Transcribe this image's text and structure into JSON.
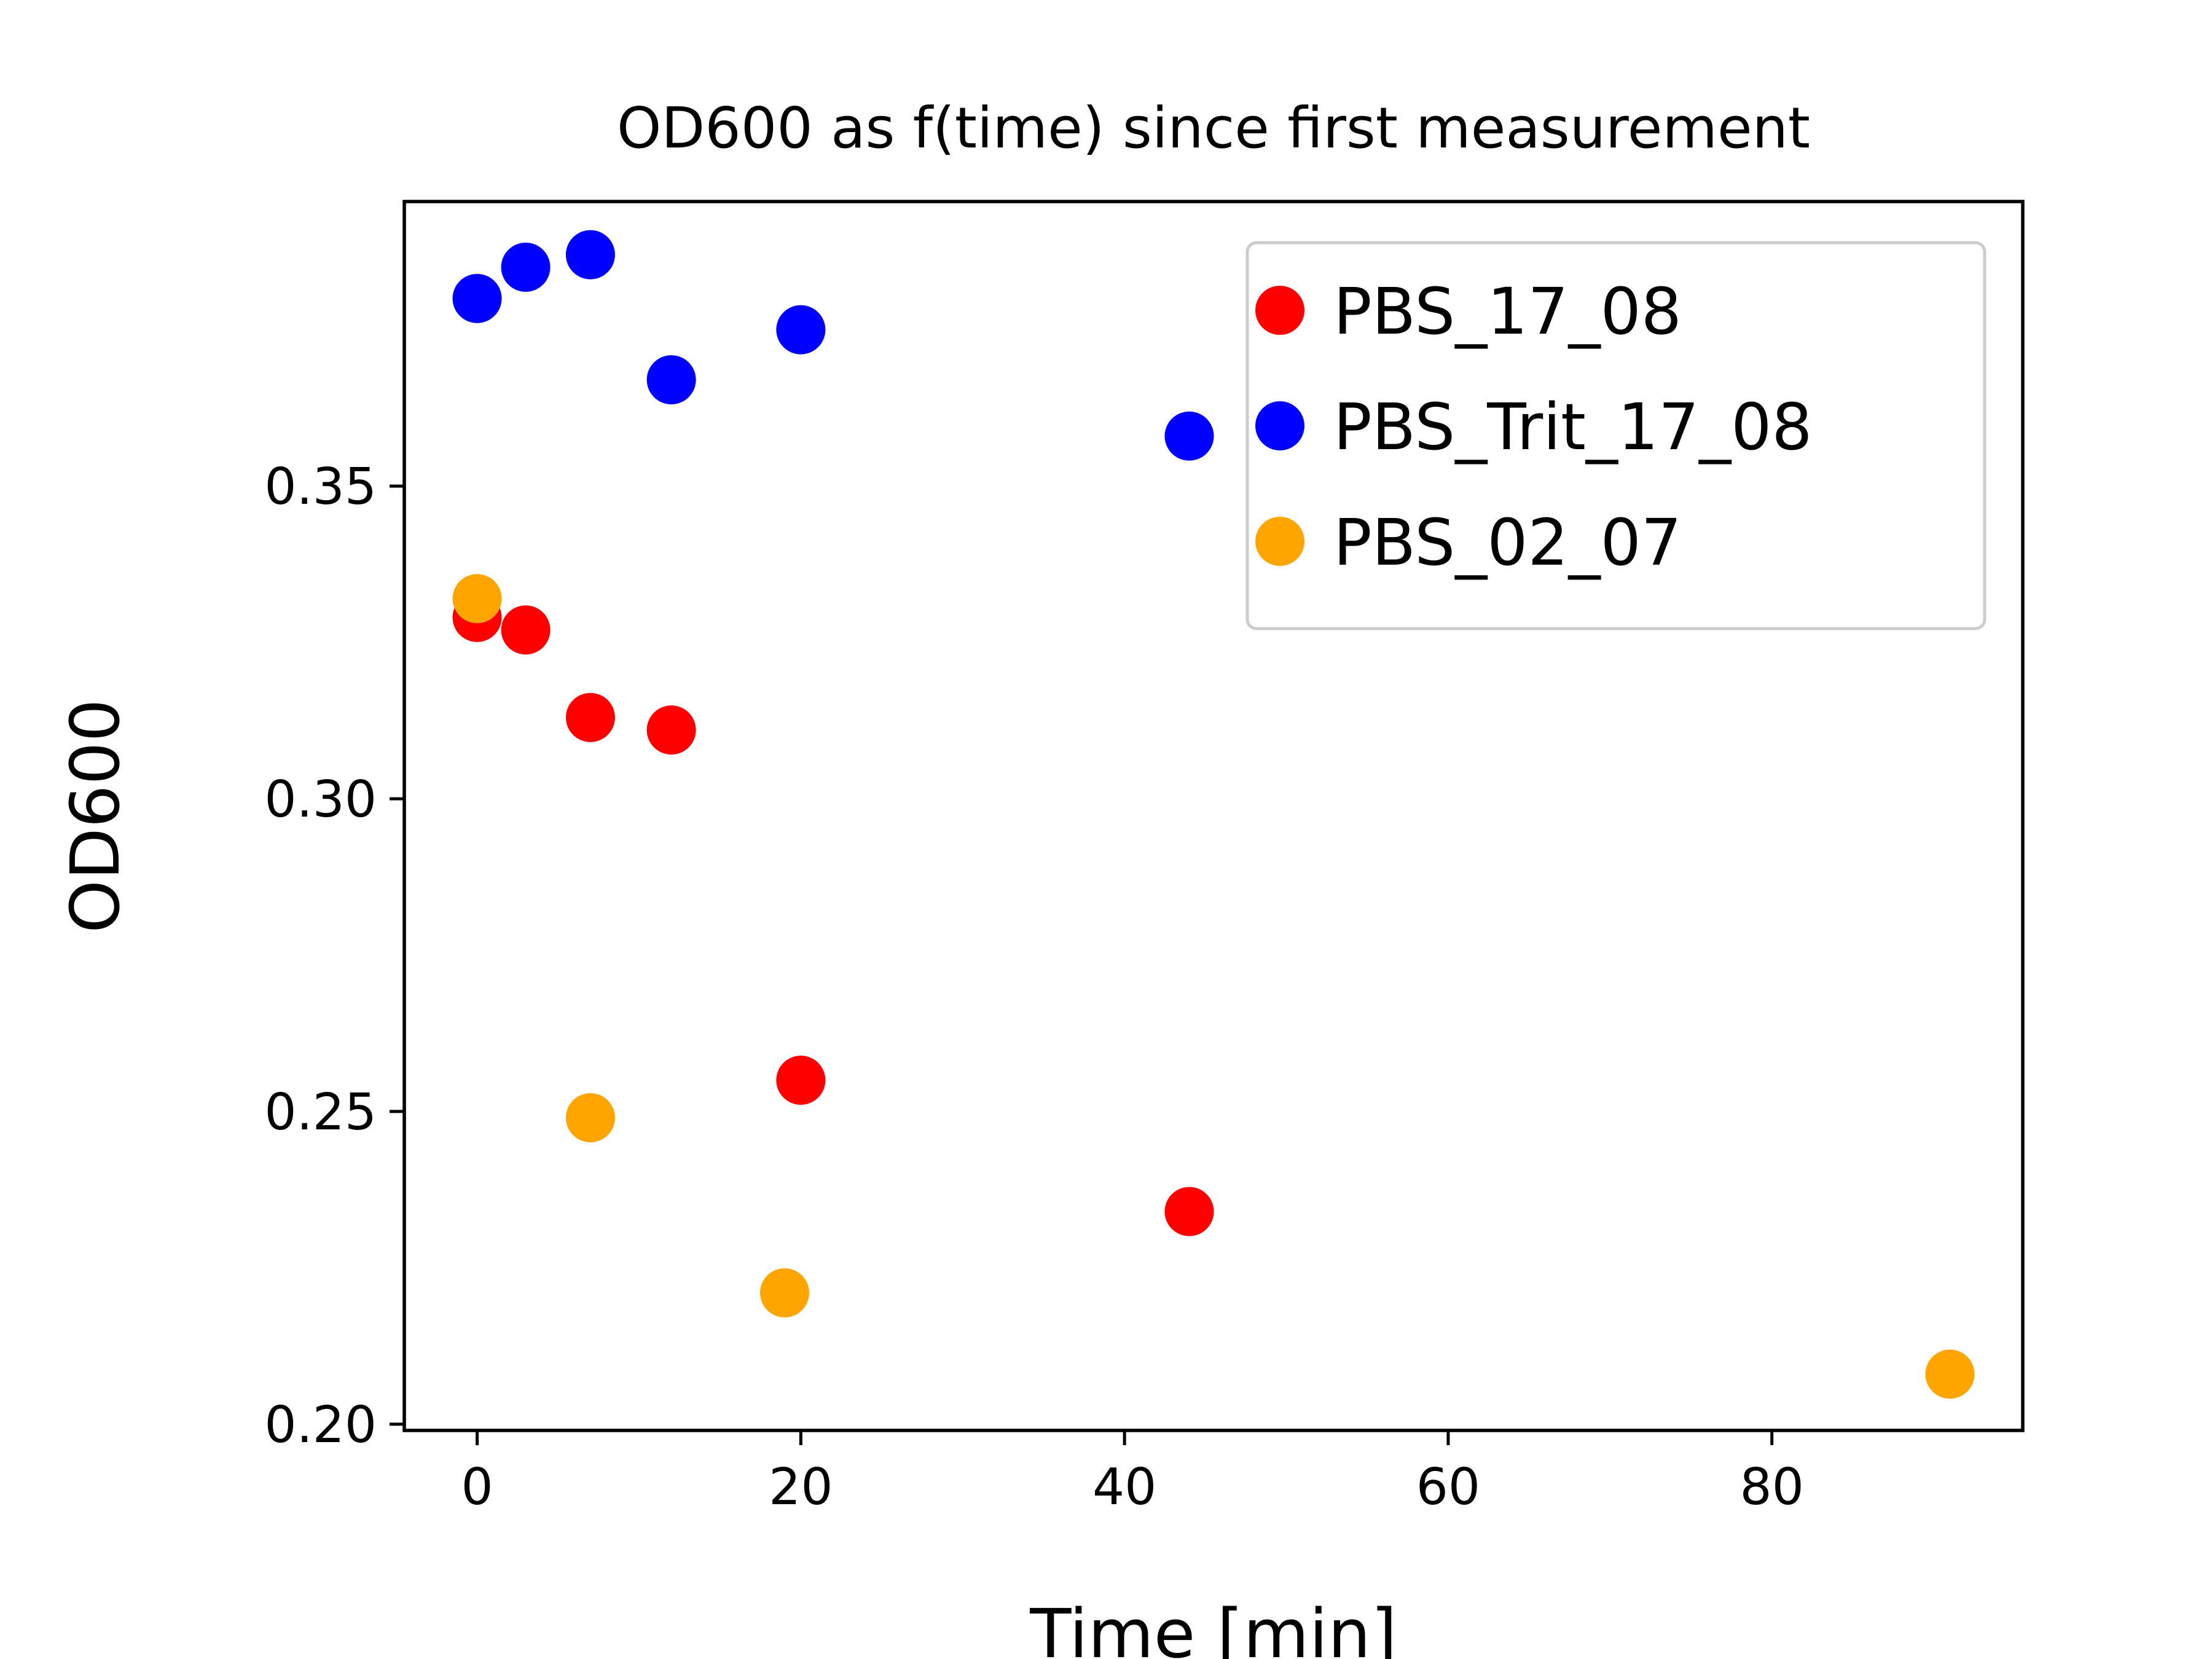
{
  "chart_data": {
    "type": "scatter",
    "title": "OD600 as f(time) since first measurement",
    "xlabel": "Time [min]",
    "ylabel": "OD600",
    "xlim": [
      -4.5,
      95.5
    ],
    "ylim": [
      0.199,
      0.3955
    ],
    "xticks": [
      0,
      20,
      40,
      60,
      80
    ],
    "yticks": [
      0.2,
      0.25,
      0.3,
      0.35
    ],
    "xtick_labels": [
      "0",
      "20",
      "40",
      "60",
      "80"
    ],
    "ytick_labels": [
      "0.20",
      "0.25",
      "0.30",
      "0.35"
    ],
    "grid": false,
    "legend_position": "top-right",
    "series": [
      {
        "name": "PBS_17_08",
        "color": "#ff0000",
        "x": [
          0,
          3,
          7,
          12,
          20,
          44
        ],
        "y": [
          0.329,
          0.327,
          0.313,
          0.311,
          0.255,
          0.234
        ]
      },
      {
        "name": "PBS_Trit_17_08",
        "color": "#0000ff",
        "x": [
          0,
          3,
          7,
          12,
          20,
          44
        ],
        "y": [
          0.38,
          0.385,
          0.387,
          0.367,
          0.375,
          0.358
        ]
      },
      {
        "name": "PBS_02_07",
        "color": "#ffa500",
        "x": [
          0,
          7,
          19,
          91
        ],
        "y": [
          0.332,
          0.249,
          0.221,
          0.208
        ]
      }
    ]
  }
}
